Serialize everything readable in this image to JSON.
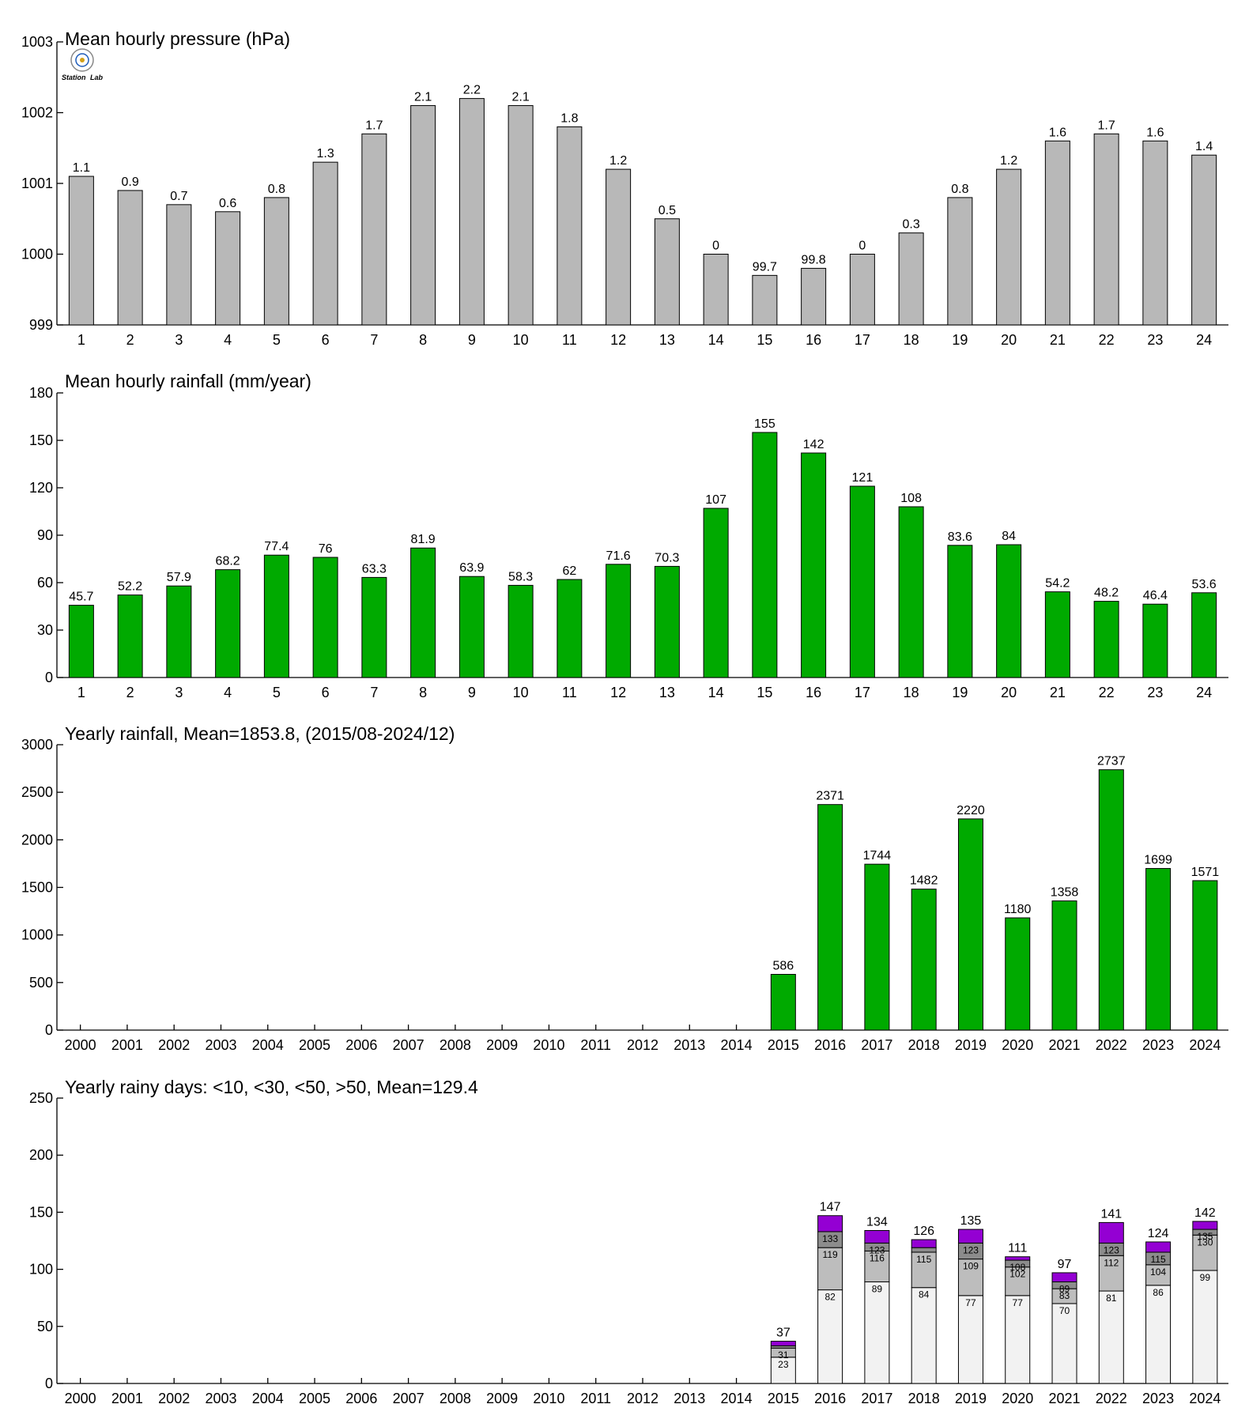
{
  "colors": {
    "pressure_bar": "#b8b8b8",
    "rain_bar": "#00aa00",
    "days_lt10": "#f2f2f2",
    "days_lt30": "#bdbdbd",
    "days_lt50": "#8c8c8c",
    "days_gt50": "#9400d3",
    "logo_blue": "#1e5bb8",
    "logo_green": "#2f9e2f",
    "logo_red": "#d12a2a"
  },
  "logo": {
    "text_left": "Station",
    "text_right": "Lab"
  },
  "chart_data": [
    {
      "type": "bar",
      "title": "Mean hourly pressure (hPa)",
      "categories": [
        "1",
        "2",
        "3",
        "4",
        "5",
        "6",
        "7",
        "8",
        "9",
        "10",
        "11",
        "12",
        "13",
        "14",
        "15",
        "16",
        "17",
        "18",
        "19",
        "20",
        "21",
        "22",
        "23",
        "24"
      ],
      "values": [
        1001.1,
        1000.9,
        1000.7,
        1000.6,
        1000.8,
        1001.3,
        1001.7,
        1002.1,
        1002.2,
        1002.1,
        1001.8,
        1001.2,
        1000.5,
        1000.0,
        999.7,
        999.8,
        1000.0,
        1000.3,
        1000.8,
        1001.2,
        1001.6,
        1001.7,
        1001.6,
        1001.4
      ],
      "data_labels": [
        "1.1",
        "0.9",
        "0.7",
        "0.6",
        "0.8",
        "1.3",
        "1.7",
        "2.1",
        "2.2",
        "2.1",
        "1.8",
        "1.2",
        "0.5",
        "0",
        "99.7",
        "99.8",
        "0",
        "0.3",
        "0.8",
        "1.2",
        "1.6",
        "1.7",
        "1.6",
        "1.4"
      ],
      "ylim": [
        999,
        1003
      ],
      "yticks": [
        999,
        1000,
        1001,
        1002,
        1003
      ],
      "xlabel": "",
      "ylabel": "",
      "grid": false
    },
    {
      "type": "bar",
      "title": "Mean hourly rainfall (mm/year)",
      "categories": [
        "1",
        "2",
        "3",
        "4",
        "5",
        "6",
        "7",
        "8",
        "9",
        "10",
        "11",
        "12",
        "13",
        "14",
        "15",
        "16",
        "17",
        "18",
        "19",
        "20",
        "21",
        "22",
        "23",
        "24"
      ],
      "values": [
        45.7,
        52.2,
        57.9,
        68.2,
        77.4,
        76,
        63.3,
        81.9,
        63.9,
        58.3,
        62,
        71.6,
        70.3,
        107,
        155,
        142,
        121,
        108,
        83.6,
        84,
        54.2,
        48.2,
        46.4,
        53.6
      ],
      "data_labels": [
        "45.7",
        "52.2",
        "57.9",
        "68.2",
        "77.4",
        "76",
        "63.3",
        "81.9",
        "63.9",
        "58.3",
        "62",
        "71.6",
        "70.3",
        "107",
        "155",
        "142",
        "121",
        "108",
        "83.6",
        "84",
        "54.2",
        "48.2",
        "46.4",
        "53.6"
      ],
      "ylim": [
        0,
        180
      ],
      "yticks": [
        0,
        30,
        60,
        90,
        120,
        150,
        180
      ],
      "xlabel": "",
      "ylabel": "",
      "grid": false
    },
    {
      "type": "bar",
      "title": "Yearly rainfall, Mean=1853.8, (2015/08-2024/12)",
      "categories": [
        "2000",
        "2001",
        "2002",
        "2003",
        "2004",
        "2005",
        "2006",
        "2007",
        "2008",
        "2009",
        "2010",
        "2011",
        "2012",
        "2013",
        "2014",
        "2015",
        "2016",
        "2017",
        "2018",
        "2019",
        "2020",
        "2021",
        "2022",
        "2023",
        "2024"
      ],
      "values": [
        null,
        null,
        null,
        null,
        null,
        null,
        null,
        null,
        null,
        null,
        null,
        null,
        null,
        null,
        null,
        586,
        2371,
        1744,
        1482,
        2220,
        1180,
        1358,
        2737,
        1699,
        1571
      ],
      "data_labels": [
        "",
        "",
        "",
        "",
        "",
        "",
        "",
        "",
        "",
        "",
        "",
        "",
        "",
        "",
        "",
        "586",
        "2371",
        "1744",
        "1482",
        "2220",
        "1180",
        "1358",
        "2737",
        "1699",
        "1571"
      ],
      "ylim": [
        0,
        3000
      ],
      "yticks": [
        0,
        500,
        1000,
        1500,
        2000,
        2500,
        3000
      ],
      "xlabel": "",
      "ylabel": "",
      "grid": false
    },
    {
      "type": "bar",
      "stacked": true,
      "title": "Yearly rainy days: <10, <30, <50, >50, Mean=129.4",
      "categories": [
        "2000",
        "2001",
        "2002",
        "2003",
        "2004",
        "2005",
        "2006",
        "2007",
        "2008",
        "2009",
        "2010",
        "2011",
        "2012",
        "2013",
        "2014",
        "2015",
        "2016",
        "2017",
        "2018",
        "2019",
        "2020",
        "2021",
        "2022",
        "2023",
        "2024"
      ],
      "cumulative": {
        "lt10": [
          null,
          null,
          null,
          null,
          null,
          null,
          null,
          null,
          null,
          null,
          null,
          null,
          null,
          null,
          null,
          23,
          82,
          89,
          84,
          77,
          77,
          70,
          81,
          86,
          99
        ],
        "lt30": [
          null,
          null,
          null,
          null,
          null,
          null,
          null,
          null,
          null,
          null,
          null,
          null,
          null,
          null,
          null,
          31,
          119,
          116,
          115,
          109,
          102,
          83,
          112,
          104,
          130
        ],
        "lt50": [
          null,
          null,
          null,
          null,
          null,
          null,
          null,
          null,
          null,
          null,
          null,
          null,
          null,
          null,
          null,
          33,
          133,
          123,
          119,
          123,
          108,
          89,
          123,
          115,
          135
        ],
        "total": [
          null,
          null,
          null,
          null,
          null,
          null,
          null,
          null,
          null,
          null,
          null,
          null,
          null,
          null,
          null,
          37,
          147,
          134,
          126,
          135,
          111,
          97,
          141,
          124,
          142
        ]
      },
      "labels": {
        "lt10": [
          "",
          "",
          "",
          "",
          "",
          "",
          "",
          "",
          "",
          "",
          "",
          "",
          "",
          "",
          "",
          "23",
          "82",
          "89",
          "84",
          "77",
          "77",
          "70",
          "81",
          "86",
          "99"
        ],
        "lt30": [
          "",
          "",
          "",
          "",
          "",
          "",
          "",
          "",
          "",
          "",
          "",
          "",
          "",
          "",
          "",
          "31",
          "119",
          "116",
          "115",
          "109",
          "102",
          "83",
          "112",
          "104",
          "130"
        ],
        "lt50": [
          "",
          "",
          "",
          "",
          "",
          "",
          "",
          "",
          "",
          "",
          "",
          "",
          "",
          "",
          "",
          "",
          "133",
          "123",
          "",
          "123",
          "108",
          "89",
          "123",
          "115",
          "135"
        ],
        "total": [
          "",
          "",
          "",
          "",
          "",
          "",
          "",
          "",
          "",
          "",
          "",
          "",
          "",
          "",
          "",
          "37",
          "147",
          "134",
          "126",
          "135",
          "111",
          "97",
          "141",
          "124",
          "142"
        ]
      },
      "ylim": [
        0,
        250
      ],
      "yticks": [
        0,
        50,
        100,
        150,
        200,
        250
      ],
      "xlabel": "",
      "ylabel": "",
      "grid": false
    }
  ]
}
